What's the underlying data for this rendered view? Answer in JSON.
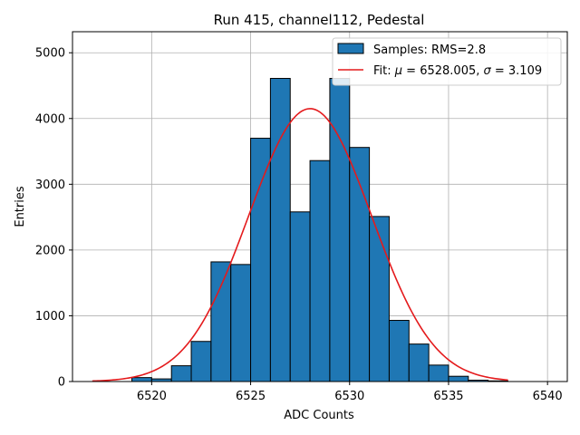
{
  "chart_data": {
    "type": "bar",
    "title": "Run 415, channel112, Pedestal",
    "xlabel": "ADC Counts",
    "ylabel": "Entries",
    "xlim": [
      6516,
      6541
    ],
    "ylim": [
      0,
      5320
    ],
    "xticks": [
      6520,
      6525,
      6530,
      6535,
      6540
    ],
    "yticks": [
      0,
      1000,
      2000,
      3000,
      4000,
      5000
    ],
    "grid": true,
    "legend_position": "top-right",
    "bin_edges": [
      6519,
      6520,
      6521,
      6522,
      6523,
      6524,
      6525,
      6526,
      6527,
      6528,
      6529,
      6530,
      6531,
      6532,
      6533,
      6534,
      6535,
      6536,
      6537,
      6538
    ],
    "series": [
      {
        "name": "Samples: RMS=2.8",
        "values": [
          60,
          40,
          240,
          610,
          1820,
          1780,
          3700,
          4610,
          2580,
          3360,
          4610,
          3560,
          2510,
          930,
          570,
          250,
          80,
          20,
          10
        ]
      }
    ],
    "fit": {
      "name": "Fit: μ = 6528.005, σ = 3.109",
      "label_prefix": "Fit: ",
      "mu_label": "μ",
      "mu_value": " = 6528.005, ",
      "sigma_label": "σ",
      "sigma_value": " = 3.109",
      "mu": 6528.005,
      "sigma": 3.109,
      "amplitude": 4150,
      "x_range": [
        6517,
        6538
      ]
    },
    "colors": {
      "bars": "#1f77b4",
      "fit": "#e41a1c"
    }
  }
}
